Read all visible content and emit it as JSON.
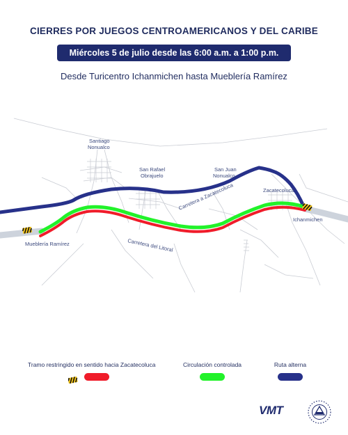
{
  "header": {
    "title": "CIERRES POR JUEGOS CENTROAMERICANOS Y DEL CARIBE",
    "date": "Miércoles 5 de julio desde las 6:00 a.m. a 1:00 p.m.",
    "route": "Desde Turicentro Ichanmichen hasta Mueblería Ramírez"
  },
  "map": {
    "places": {
      "santiago_1": "Santiago",
      "santiago_2": "Nonualco",
      "sanrafael_1": "San Rafael",
      "sanrafael_2": "Obrajuelo",
      "sanjuan_1": "San Juan",
      "sanjuan_2": "Nonualco",
      "zacatecoluca": "Zacatecoluca",
      "ichanmichen": "Ichanmichen",
      "muebleria": "Mueblería Ramírez"
    },
    "roads": {
      "carretera_zacatecoluca": "Carretera a Zacatecoluca",
      "carretera_litoral": "Carretera del Litoral"
    }
  },
  "legend": {
    "restricted": {
      "label": "Tramo restringido en sentido hacia Zacatecoluca",
      "color": "#f01c2a"
    },
    "controlled": {
      "label": "Circulación controlada",
      "color": "#22f22a"
    },
    "alternate": {
      "label": "Ruta alterna",
      "color": "#27318a"
    }
  },
  "footer": {
    "logo": "VMT"
  }
}
